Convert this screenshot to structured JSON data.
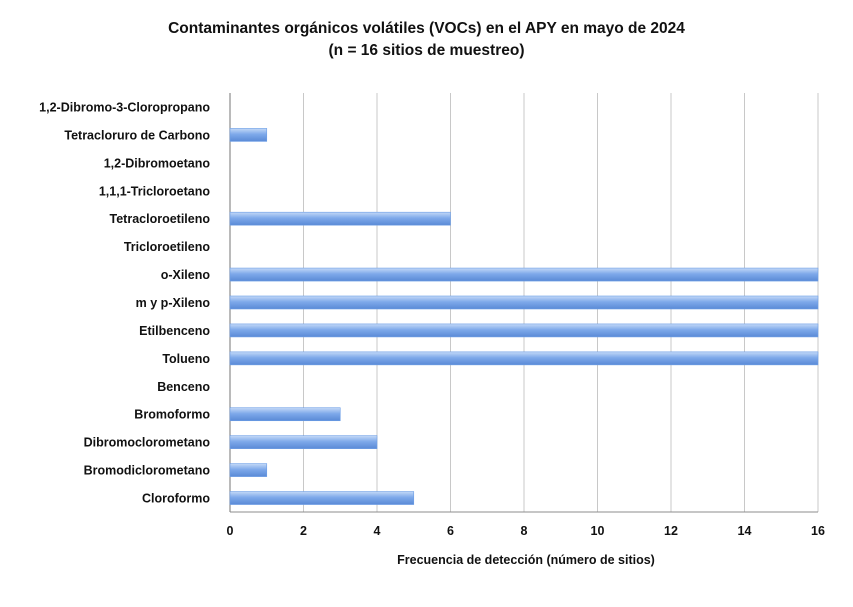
{
  "chart_data": {
    "type": "bar",
    "orientation": "horizontal",
    "title": "Contaminantes orgánicos volátiles (VOCs) en el APY en mayo de 2024",
    "subtitle": "(n = 16 sitios de muestreo)",
    "xlabel": "Frecuencia de detección (número de sitios)",
    "ylabel": "",
    "xlim": [
      0,
      16
    ],
    "xticks": [
      "0",
      "2",
      "4",
      "6",
      "8",
      "10",
      "12",
      "14",
      "16"
    ],
    "grid": "vertical",
    "legend": "none",
    "bar_color": "#6d9ee6",
    "categories": [
      "1,2-Dibromo-3-Cloropropano",
      "Tetracloruro de Carbono",
      "1,2-Dibromoetano",
      "1,1,1-Tricloroetano",
      "Tetracloroetileno",
      "Tricloroetileno",
      "o-Xileno",
      "m y p-Xileno",
      "Etilbenceno",
      "Tolueno",
      "Benceno",
      "Bromoformo",
      "Dibromoclorometano",
      "Bromodiclorometano",
      "Cloroformo"
    ],
    "values": [
      0,
      1,
      0,
      0,
      6,
      0,
      16,
      16,
      16,
      16,
      0,
      3,
      4,
      1,
      5
    ]
  }
}
